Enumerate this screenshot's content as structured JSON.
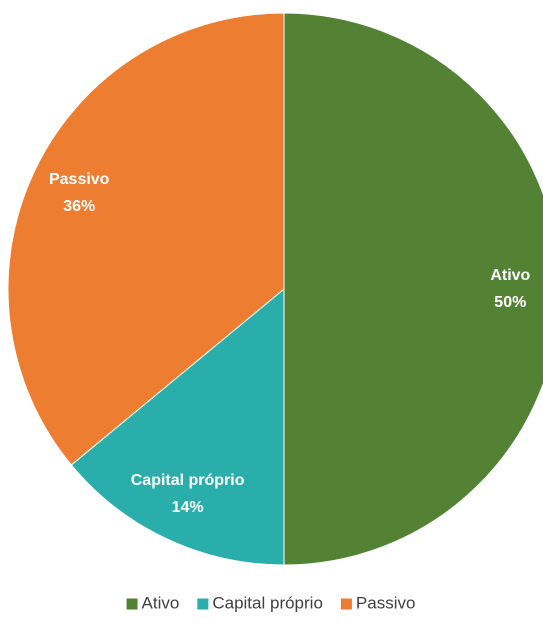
{
  "chart_data": {
    "type": "pie",
    "categories": [
      "Ativo",
      "Capital próprio",
      "Passivo"
    ],
    "values": [
      50,
      14,
      36
    ],
    "value_labels": [
      "50%",
      "14%",
      "36%"
    ],
    "colors": [
      "#548235",
      "#2aaeac",
      "#ed7d31"
    ],
    "legend": "bottom"
  }
}
